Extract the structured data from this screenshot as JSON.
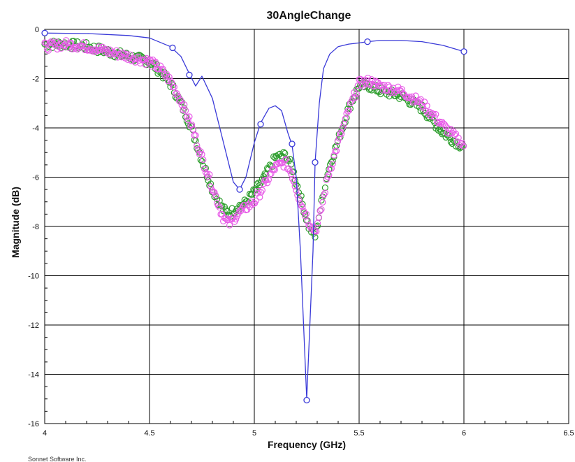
{
  "chart_data": {
    "type": "line",
    "title": "30AngleChange",
    "xlabel": "Frequency (GHz)",
    "ylabel": "Magnitude (dB)",
    "xlim": [
      4,
      6.5
    ],
    "ylim": [
      -16,
      0
    ],
    "xticks": [
      "4",
      "4.5",
      "5",
      "5.5",
      "6",
      "6.5"
    ],
    "yticks": [
      "0",
      "-2",
      "-4",
      "-6",
      "-8",
      "-10",
      "-12",
      "-14",
      "-16"
    ],
    "grid": true,
    "footer": "Sonnet Software Inc.",
    "series": [
      {
        "color": "#3a3ad8",
        "style": "line-with-markers",
        "x": [
          4.0,
          4.2,
          4.4,
          4.5,
          4.6,
          4.65,
          4.69,
          4.72,
          4.75,
          4.8,
          4.85,
          4.9,
          4.93,
          4.96,
          5.0,
          5.03,
          5.07,
          5.1,
          5.13,
          5.16,
          5.18,
          5.2,
          5.22,
          5.24,
          5.25,
          5.26,
          5.28,
          5.29,
          5.31,
          5.33,
          5.36,
          5.4,
          5.45,
          5.5,
          5.54,
          5.6,
          5.7,
          5.8,
          5.9,
          6.0
        ],
        "y": [
          -0.15,
          -0.17,
          -0.25,
          -0.35,
          -0.7,
          -1.1,
          -1.8,
          -2.3,
          -1.9,
          -2.8,
          -4.5,
          -6.2,
          -6.5,
          -6.0,
          -4.6,
          -3.8,
          -3.2,
          -3.1,
          -3.3,
          -4.2,
          -4.7,
          -6.0,
          -9.0,
          -13.0,
          -15.0,
          -13.0,
          -9.0,
          -5.4,
          -3.0,
          -1.6,
          -1.0,
          -0.7,
          -0.6,
          -0.55,
          -0.5,
          -0.45,
          -0.45,
          -0.5,
          -0.65,
          -0.9
        ],
        "marker_x": [
          4.0,
          4.61,
          4.69,
          4.93,
          5.03,
          5.18,
          5.25,
          5.29,
          5.54,
          6.0
        ],
        "marker_y": [
          -0.15,
          -0.75,
          -1.85,
          -6.5,
          -3.85,
          -4.65,
          -15.05,
          -5.4,
          -0.5,
          -0.9
        ]
      },
      {
        "color": "#2e9e2e",
        "style": "open-circles",
        "x": [
          4.0,
          4.1,
          4.2,
          4.3,
          4.4,
          4.5,
          4.55,
          4.6,
          4.65,
          4.7,
          4.75,
          4.8,
          4.85,
          4.88,
          4.92,
          4.95,
          5.0,
          5.05,
          5.1,
          5.15,
          5.18,
          5.22,
          5.26,
          5.29,
          5.31,
          5.35,
          5.4,
          5.45,
          5.5,
          5.55,
          5.6,
          5.7,
          5.8,
          5.9,
          6.0
        ],
        "y": [
          -0.6,
          -0.6,
          -0.7,
          -0.9,
          -1.1,
          -1.3,
          -1.7,
          -2.2,
          -3.0,
          -4.0,
          -5.3,
          -6.5,
          -7.3,
          -7.5,
          -7.2,
          -7.1,
          -6.6,
          -6.0,
          -5.2,
          -5.1,
          -5.6,
          -6.8,
          -8.0,
          -8.4,
          -7.5,
          -5.8,
          -4.5,
          -3.2,
          -2.3,
          -2.3,
          -2.5,
          -2.7,
          -3.2,
          -4.2,
          -4.8
        ]
      },
      {
        "color": "#e85ce8",
        "style": "open-circles",
        "x": [
          4.0,
          4.1,
          4.2,
          4.3,
          4.4,
          4.5,
          4.55,
          4.6,
          4.65,
          4.7,
          4.75,
          4.8,
          4.85,
          4.88,
          4.92,
          4.95,
          5.0,
          5.05,
          5.1,
          5.15,
          5.18,
          5.22,
          5.26,
          5.29,
          5.31,
          5.35,
          5.4,
          5.45,
          5.5,
          5.55,
          5.6,
          5.7,
          5.8,
          5.9,
          6.0
        ],
        "y": [
          -0.7,
          -0.6,
          -0.7,
          -0.9,
          -1.1,
          -1.3,
          -1.6,
          -2.1,
          -2.9,
          -3.9,
          -5.2,
          -6.4,
          -7.6,
          -7.9,
          -7.5,
          -7.3,
          -7.0,
          -6.3,
          -5.6,
          -5.4,
          -5.9,
          -7.0,
          -7.8,
          -8.2,
          -7.7,
          -6.0,
          -4.6,
          -3.3,
          -2.2,
          -2.1,
          -2.3,
          -2.5,
          -3.0,
          -3.9,
          -4.7
        ]
      }
    ]
  }
}
